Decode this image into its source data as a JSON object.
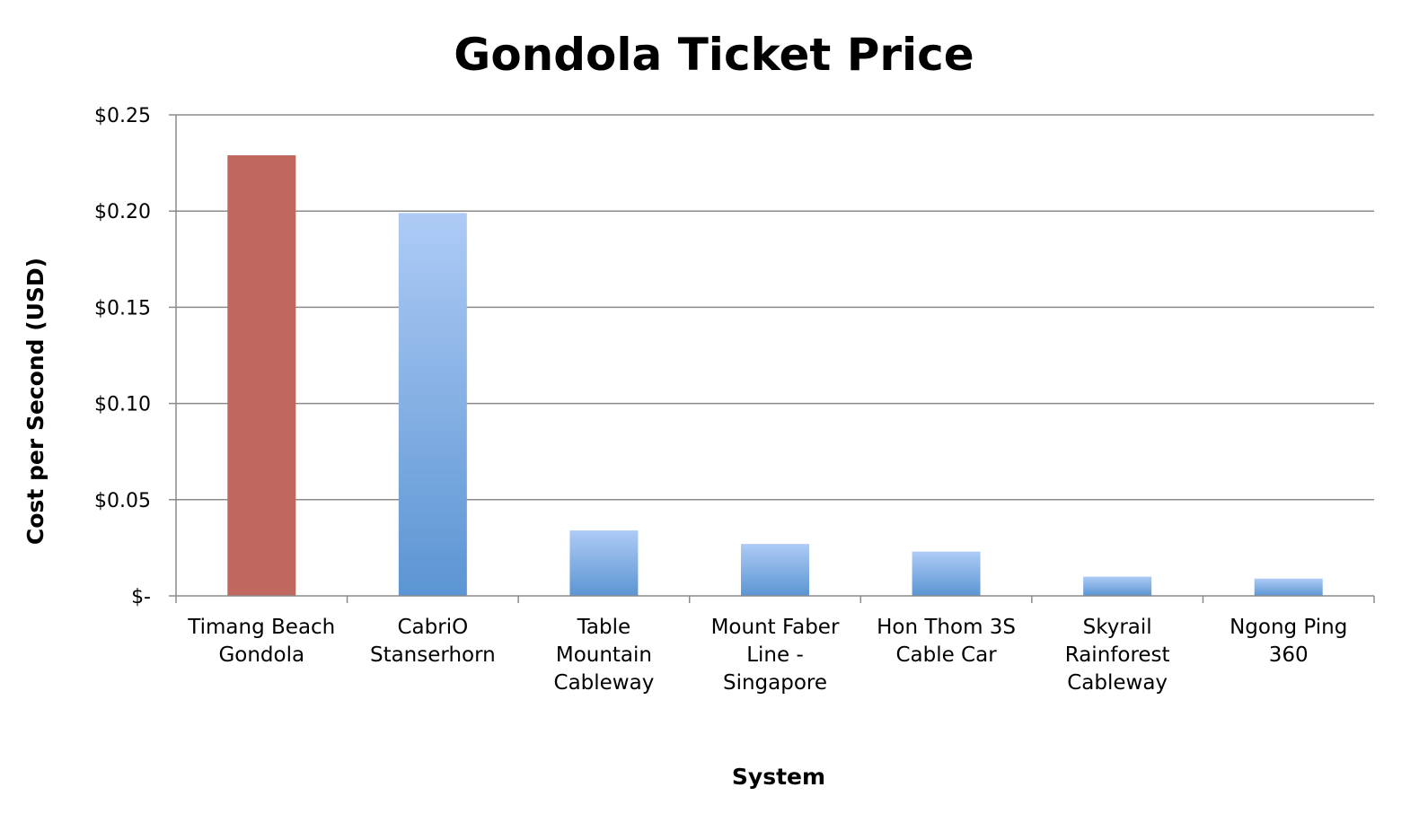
{
  "chart_data": {
    "type": "bar",
    "title": "Gondola Ticket Price",
    "xlabel": "System",
    "ylabel": "Cost per Second (USD)",
    "ylim": [
      0,
      0.25
    ],
    "yticks": [
      {
        "value": 0,
        "label": "$-"
      },
      {
        "value": 0.05,
        "label": "$0.05"
      },
      {
        "value": 0.1,
        "label": "$0.10"
      },
      {
        "value": 0.15,
        "label": "$0.15"
      },
      {
        "value": 0.2,
        "label": "$0.20"
      },
      {
        "value": 0.25,
        "label": "$0.25"
      }
    ],
    "grid": true,
    "categories": [
      [
        "Timang Beach",
        "Gondola"
      ],
      [
        "CabriO",
        "Stanserhorn"
      ],
      [
        "Table",
        "Mountain",
        "Cableway"
      ],
      [
        "Mount Faber",
        "Line -",
        "Singapore"
      ],
      [
        "Hon Thom 3S",
        "Cable Car"
      ],
      [
        "Skyrail",
        "Rainforest",
        "Cableway"
      ],
      [
        "Ngong Ping",
        "360"
      ]
    ],
    "values": [
      0.229,
      0.199,
      0.034,
      0.027,
      0.023,
      0.01,
      0.009
    ],
    "colors": {
      "highlight": "#c0675f",
      "bar_top": "#aecbf5",
      "bar_bottom": "#5b95d3"
    },
    "highlight_index": 0
  }
}
